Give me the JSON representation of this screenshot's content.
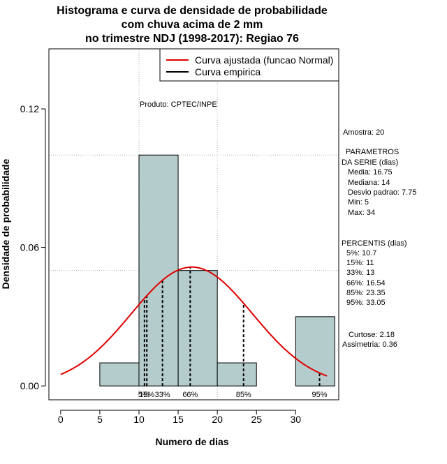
{
  "chart_data": {
    "type": "histogram",
    "title": [
      "Histograma e curva de densidade de probabilidade",
      "com chuva acima de 2 mm",
      "no trimestre NDJ (1998-2017): Regiao 76"
    ],
    "xlabel": "Numero de dias",
    "ylabel": "Densidade de probabilidade",
    "xlim": [
      -1.5,
      35.5
    ],
    "ylim": [
      -0.006,
      0.146
    ],
    "x_ticks": [
      0,
      5,
      10,
      15,
      20,
      25,
      30
    ],
    "y_ticks": [
      0.0,
      0.06,
      0.12
    ],
    "y_tick_labels": [
      "0.00",
      "0.06",
      "0.12"
    ],
    "bins": [
      {
        "from": 5,
        "to": 10,
        "density": 0.01
      },
      {
        "from": 10,
        "to": 15,
        "density": 0.1
      },
      {
        "from": 15,
        "to": 20,
        "density": 0.05
      },
      {
        "from": 20,
        "to": 25,
        "density": 0.01
      },
      {
        "from": 25,
        "to": 30,
        "density": 0.0
      },
      {
        "from": 30,
        "to": 35,
        "density": 0.03
      }
    ],
    "normal_curve": {
      "mean": 16.75,
      "sd": 7.75,
      "x_from": 0,
      "x_to": 34
    },
    "percentile_lines": [
      {
        "label": "5%",
        "value": 10.7
      },
      {
        "label": "15%",
        "value": 11
      },
      {
        "label": "33%",
        "value": 13
      },
      {
        "label": "66%",
        "value": 16.54
      },
      {
        "label": "85%",
        "value": 23.35
      },
      {
        "label": "95%",
        "value": 33.05
      }
    ],
    "percentile_labels": [
      {
        "text": "5%",
        "x": 10.6
      },
      {
        "text": "15%",
        "x": 11.0
      },
      {
        "text": "33%",
        "x": 13.0
      },
      {
        "text": "66%",
        "x": 16.54
      },
      {
        "text": "85%",
        "x": 23.35
      },
      {
        "text": "95%",
        "x": 33.05
      }
    ],
    "gridlines_y": [
      0.1,
      0.05
    ],
    "gridlines_x": [
      10,
      20
    ],
    "legend": {
      "position": "top-right",
      "entries": [
        {
          "label": "Curva ajustada (funcao Normal)",
          "color": "#e00000"
        },
        {
          "label": "Curva empirica",
          "color": "#000000"
        }
      ]
    },
    "annotation_product": "Produto: CPTEC/INPE",
    "stats": {
      "amostra": "Amostra: 20",
      "param_title_1": "PARAMETROS",
      "param_title_2": "DA SERIE (dias)",
      "media": "Media: 16.75",
      "mediana": "Mediana: 14",
      "desvio": "Desvio padrao: 7.75",
      "min": "Min: 5",
      "max": "Max: 34",
      "perc_title": "PERCENTIS (dias)",
      "p5": "5%: 10.7",
      "p15": "15%: 11",
      "p33": "33%: 13",
      "p66": "66%: 16.54",
      "p85": "85%: 23.35",
      "p95": "95%: 33.05",
      "curtose": "Curtose: 2.18",
      "assimetria": "Assimetria: 0.36"
    },
    "colors": {
      "bar_fill": "#b4cccc",
      "bar_stroke": "#000000",
      "curve": "#e00000",
      "grid": "#b0b0b0"
    }
  }
}
